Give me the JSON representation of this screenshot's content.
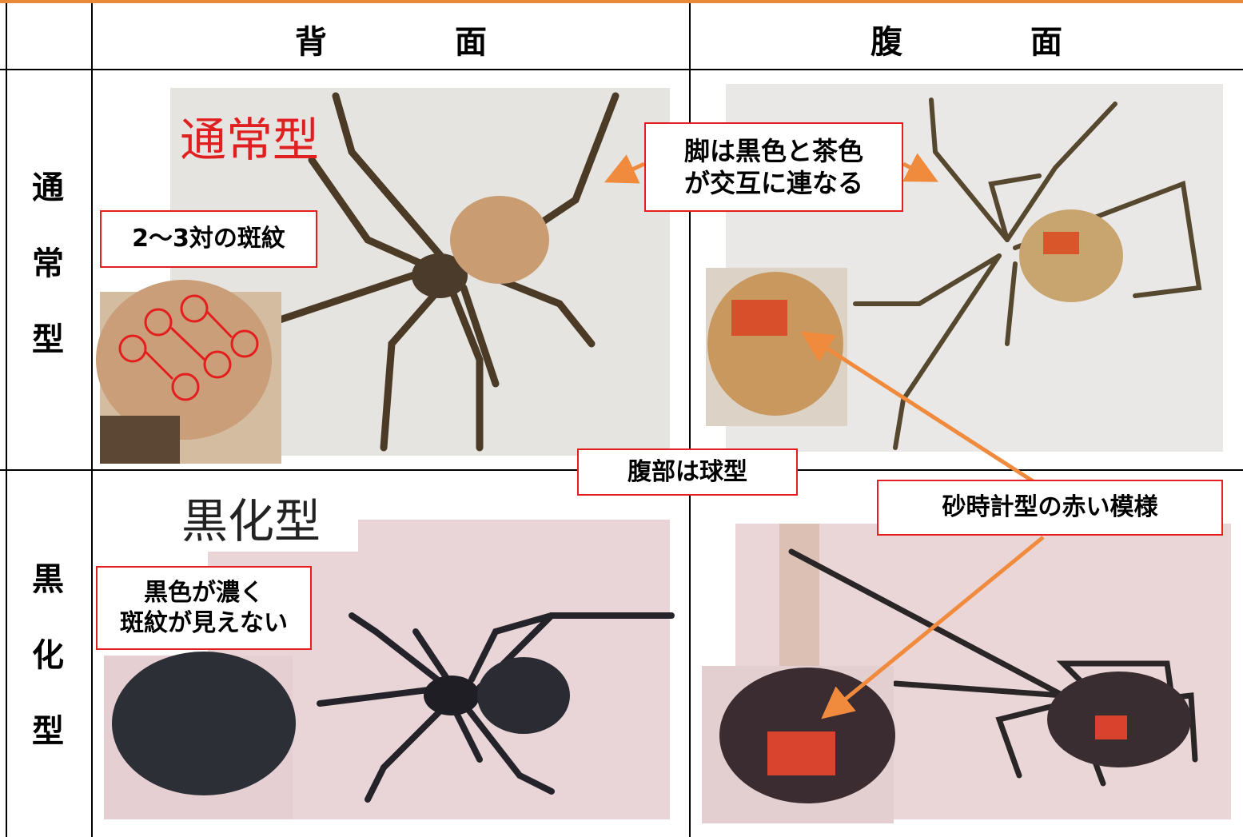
{
  "header": {
    "columns": [
      "背　　　　面",
      "腹　　　　面"
    ]
  },
  "rows": [
    {
      "label": "通常型",
      "photo_caption": "通常型"
    },
    {
      "label": "黒化型",
      "photo_caption": "黒化型"
    }
  ],
  "callouts": {
    "spots": "2〜3対の斑紋",
    "legs": [
      "脚は黒色と茶色",
      "が交互に連なる"
    ],
    "abdomen": "腹部は球型",
    "hourglass": "砂時計型の赤い模様",
    "melanic": [
      "黒色が濃く",
      "斑紋が見えない"
    ]
  }
}
